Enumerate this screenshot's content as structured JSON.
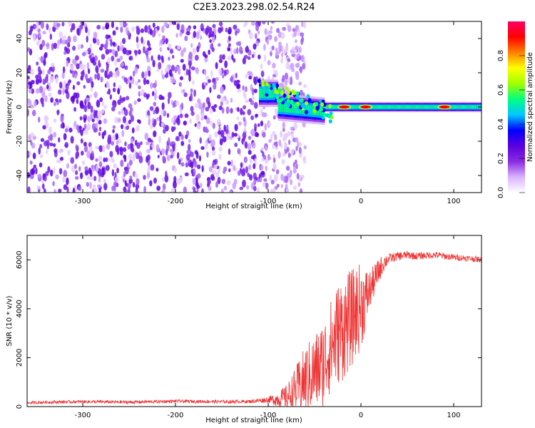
{
  "title": "C2E3.2023.298.02.54.R24",
  "chart_data": [
    {
      "type": "heatmap",
      "xlabel": "Height of straight line (km)",
      "ylabel": "Frequency (Hz)",
      "xlim": [
        -360,
        130
      ],
      "ylim": [
        -50,
        50
      ],
      "xticks": [
        -300,
        -200,
        -100,
        0,
        100
      ],
      "xtick_labels": [
        "-300",
        "-200",
        "-100",
        "0",
        "100"
      ],
      "yticks": [
        -40,
        -20,
        0,
        20,
        40
      ],
      "ytick_labels": [
        "-40",
        "-20",
        "0",
        "20",
        "40"
      ],
      "colorbar": {
        "label": "Normalized spectral amplitude",
        "range": [
          0,
          1
        ],
        "ticks": [
          0,
          0.2,
          0.4,
          0.6,
          0.8
        ],
        "tick_labels": [
          "0.0",
          "0.2",
          "0.4",
          "0.6",
          "0.8"
        ],
        "colormap": [
          "#ffffff",
          "#d9b3ff",
          "#8a2be2",
          "#5a00e0",
          "#0000ff",
          "#00c8ff",
          "#00ff80",
          "#a0ff00",
          "#ffff00",
          "#ff8000",
          "#ff0000",
          "#ff0066"
        ]
      },
      "description_of_features": {
        "noise_region_x": [
          -360,
          -85
        ],
        "signal_band_center_hz": 0,
        "signal_band_halfwidth_hz": 3,
        "signal_start_x": -110,
        "strong_peaks_x": [
          -18,
          5,
          90
        ]
      }
    },
    {
      "type": "line",
      "xlabel": "Height of straight line (km)",
      "ylabel": "SNR (10 * v/v)",
      "xlim": [
        -360,
        130
      ],
      "ylim": [
        0,
        7000
      ],
      "xticks": [
        -300,
        -200,
        -100,
        0,
        100
      ],
      "xtick_labels": [
        "-300",
        "-200",
        "-100",
        "0",
        "100"
      ],
      "yticks": [
        0,
        2000,
        4000,
        6000
      ],
      "ytick_labels": [
        "0",
        "2000",
        "4000",
        "6000"
      ],
      "series": [
        {
          "name": "SNR",
          "color": "#ee3333",
          "x": [
            -360,
            -340,
            -300,
            -250,
            -200,
            -150,
            -120,
            -100,
            -90,
            -80,
            -70,
            -60,
            -50,
            -45,
            -40,
            -35,
            -30,
            -25,
            -20,
            -15,
            -10,
            -5,
            0,
            5,
            10,
            15,
            20,
            25,
            30,
            40,
            50,
            60,
            70,
            80,
            90,
            100,
            110,
            120,
            130
          ],
          "y": [
            150,
            180,
            200,
            180,
            220,
            200,
            210,
            280,
            300,
            400,
            700,
            1100,
            1400,
            1600,
            1800,
            2300,
            2600,
            3000,
            3200,
            3400,
            3600,
            3900,
            4100,
            4400,
            4800,
            5200,
            5600,
            5900,
            6050,
            6150,
            6200,
            6150,
            6180,
            6200,
            6150,
            6100,
            6080,
            6050,
            6000
          ]
        }
      ],
      "noise_amplitude": {
        "x": [
          -360,
          -120,
          -100,
          -80,
          -60,
          -40,
          -20,
          0,
          10,
          30,
          60,
          130
        ],
        "amp": [
          60,
          70,
          120,
          500,
          1400,
          1800,
          2200,
          1800,
          800,
          200,
          150,
          120
        ]
      }
    }
  ],
  "colors": {
    "background": "#ffffff",
    "axis": "#000000",
    "signal": "#ee3333"
  }
}
